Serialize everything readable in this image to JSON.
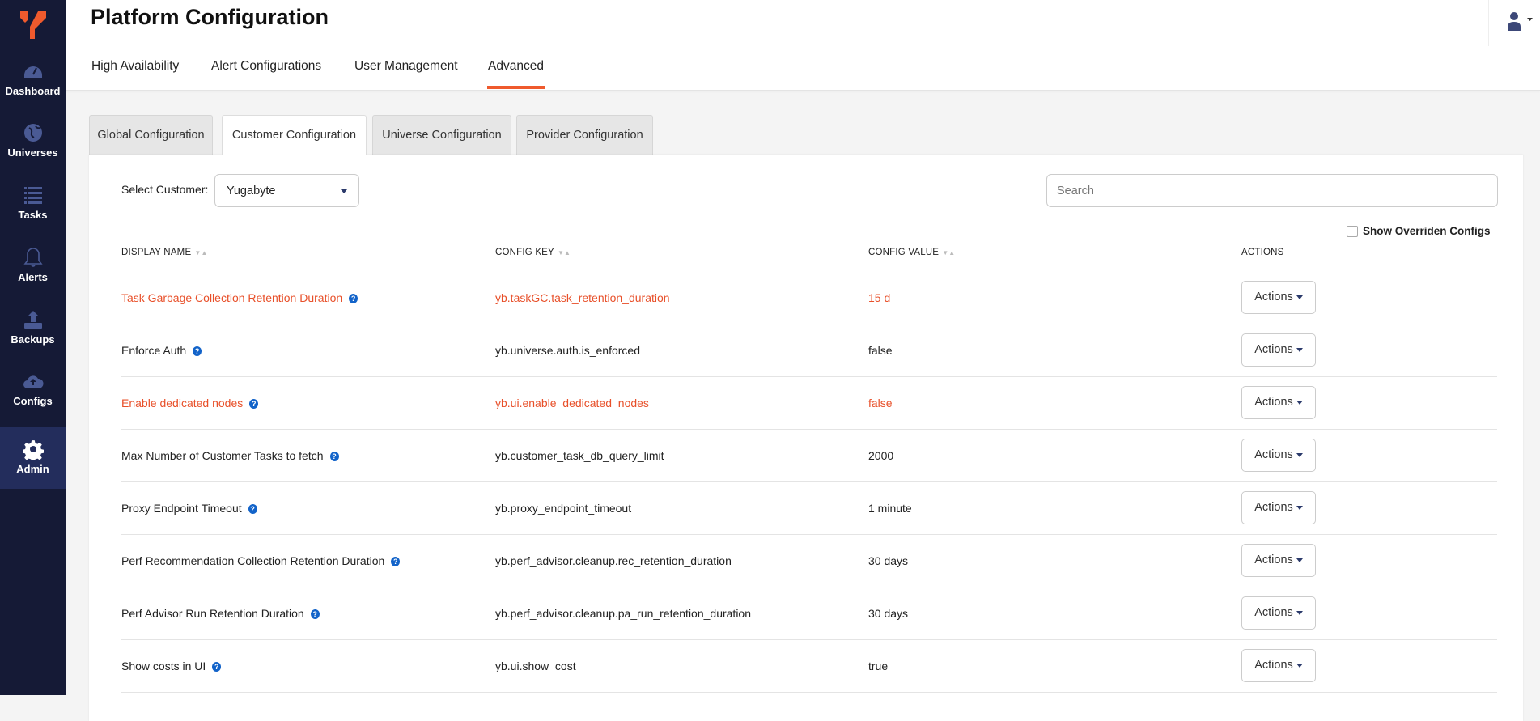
{
  "sidebar": {
    "items": [
      {
        "label": "Dashboard",
        "icon": "dashboard-icon"
      },
      {
        "label": "Universes",
        "icon": "globe-icon"
      },
      {
        "label": "Tasks",
        "icon": "list-icon"
      },
      {
        "label": "Alerts",
        "icon": "bell-icon"
      },
      {
        "label": "Backups",
        "icon": "upload-icon"
      },
      {
        "label": "Configs",
        "icon": "cloud-upload-icon"
      },
      {
        "label": "Admin",
        "icon": "gear-icon",
        "active": true
      }
    ]
  },
  "header": {
    "title": "Platform Configuration",
    "tabs": [
      "High Availability",
      "Alert Configurations",
      "User Management",
      "Advanced"
    ],
    "active_tab": "Advanced"
  },
  "subtabs": [
    "Global Configuration",
    "Customer Configuration",
    "Universe Configuration",
    "Provider Configuration"
  ],
  "active_subtab": "Customer Configuration",
  "filters": {
    "select_label": "Select Customer:",
    "customer": "Yugabyte",
    "search_placeholder": "Search",
    "search_value": "",
    "show_overridden_label": "Show Overriden Configs",
    "show_overridden_checked": false
  },
  "table": {
    "headers": [
      "DISPLAY NAME",
      "CONFIG KEY",
      "CONFIG VALUE",
      "ACTIONS"
    ],
    "action_label": "Actions",
    "rows": [
      {
        "name": "Task Garbage Collection Retention Duration",
        "key": "yb.taskGC.task_retention_duration",
        "value": "15 d",
        "overridden": true
      },
      {
        "name": "Enforce Auth",
        "key": "yb.universe.auth.is_enforced",
        "value": "false",
        "overridden": false
      },
      {
        "name": "Enable dedicated nodes",
        "key": "yb.ui.enable_dedicated_nodes",
        "value": "false",
        "overridden": true
      },
      {
        "name": "Max Number of Customer Tasks to fetch",
        "key": "yb.customer_task_db_query_limit",
        "value": "2000",
        "overridden": false
      },
      {
        "name": "Proxy Endpoint Timeout",
        "key": "yb.proxy_endpoint_timeout",
        "value": "1 minute",
        "overridden": false
      },
      {
        "name": "Perf Recommendation Collection Retention Duration",
        "key": "yb.perf_advisor.cleanup.rec_retention_duration",
        "value": "30 days",
        "overridden": false
      },
      {
        "name": "Perf Advisor Run Retention Duration",
        "key": "yb.perf_advisor.cleanup.pa_run_retention_duration",
        "value": "30 days",
        "overridden": false
      },
      {
        "name": "Show costs in UI",
        "key": "yb.ui.show_cost",
        "value": "true",
        "overridden": false
      }
    ]
  },
  "colors": {
    "sidebar": "#151a36",
    "active_nav": "#232d5c",
    "accent": "#ef5a2d",
    "overridden_text": "#e8502a",
    "help_icon": "#1263c9"
  }
}
